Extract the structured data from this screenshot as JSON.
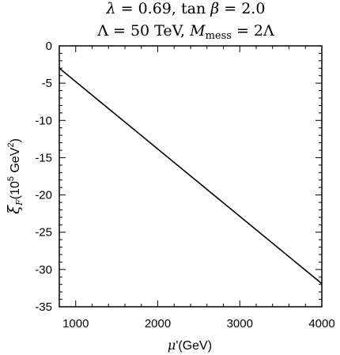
{
  "chart_data": {
    "type": "line",
    "title_lines": [
      "λ = 0.69, tan β = 2.0",
      "Λ = 50 TeV,  M_mess = 2Λ"
    ],
    "xlabel": "μ'(GeV)",
    "ylabel": "ξ_F (10^5 GeV^2)",
    "xlim": [
      800,
      4000
    ],
    "ylim": [
      -35,
      0
    ],
    "xticks": [
      1000,
      2000,
      3000,
      4000
    ],
    "xtick_labels": [
      "1000",
      "2000",
      "3000",
      "4000"
    ],
    "yticks": [
      0,
      -5,
      -10,
      -15,
      -20,
      -25,
      -30,
      -35
    ],
    "ytick_labels": [
      "0",
      "-5",
      "-10",
      "-15",
      "-20",
      "-25",
      "-30",
      "-35"
    ],
    "grid": false,
    "series": [
      {
        "x": [
          800,
          4000
        ],
        "y": [
          -3.0,
          -31.9
        ],
        "color": "#000000"
      }
    ]
  }
}
